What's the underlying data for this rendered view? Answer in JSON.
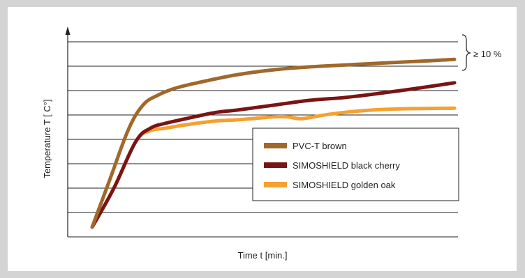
{
  "chart_data": {
    "type": "line",
    "title": "",
    "xlabel": "Time t [min.]",
    "ylabel": "Temperature T [ C°]",
    "xlim": [
      0,
      10
    ],
    "ylim": [
      0,
      8
    ],
    "grid": "horizontal",
    "legend_position": "center-right",
    "annotation": "≥ 10 %",
    "series": [
      {
        "name": "PVC-T brown",
        "color": "#a0682a",
        "x": [
          0,
          0.5,
          1,
          1.4,
          1.8,
          2.3,
          3,
          4,
          5,
          6,
          7,
          8,
          9,
          10
        ],
        "y": [
          0.4,
          2.4,
          4.4,
          5.4,
          5.8,
          6.1,
          6.35,
          6.65,
          6.85,
          6.97,
          7.05,
          7.13,
          7.2,
          7.28
        ]
      },
      {
        "name": "SIMOSHIELD black cherry",
        "color": "#7a1414",
        "x": [
          0,
          0.6,
          1.2,
          1.6,
          2,
          2.6,
          3.4,
          4,
          5,
          6,
          7,
          8,
          9,
          10
        ],
        "y": [
          0.4,
          2.0,
          3.9,
          4.45,
          4.65,
          4.85,
          5.1,
          5.2,
          5.4,
          5.6,
          5.72,
          5.9,
          6.1,
          6.32
        ]
      },
      {
        "name": "SIMOSHIELD golden oak",
        "color": "#f5a030",
        "x": [
          0,
          0.6,
          1.2,
          1.6,
          2,
          2.6,
          3.4,
          4,
          5,
          5.4,
          5.8,
          6.5,
          7.5,
          8.5,
          10
        ],
        "y": [
          0.4,
          2.0,
          3.9,
          4.35,
          4.45,
          4.6,
          4.75,
          4.8,
          4.92,
          4.92,
          4.85,
          5.02,
          5.18,
          5.25,
          5.28
        ]
      }
    ]
  }
}
